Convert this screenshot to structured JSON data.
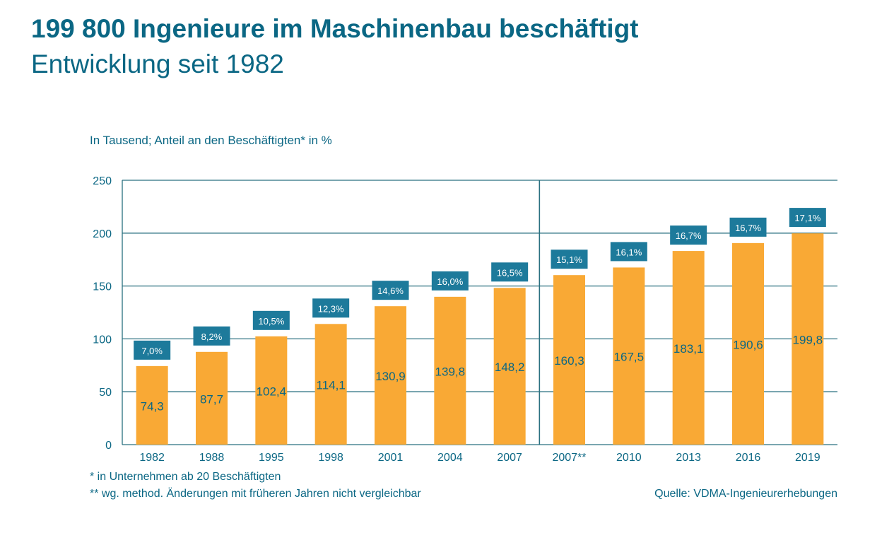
{
  "title": "199 800 Ingenieure im Maschinenbau beschäftigt",
  "subtitle": "Entwicklung seit 1982",
  "unit_label": "In Tausend; Anteil an den Beschäftigten* in %",
  "footnotes": [
    "*  in Unternehmen ab 20 Beschäftigten",
    "** wg. method. Änderungen mit früheren Jahren nicht vergleichbar"
  ],
  "source": "Quelle: VDMA-Ingenieurerhebungen",
  "colors": {
    "bar": "#f9a935",
    "label_box": "#1d7a9b",
    "text": "#0b6784",
    "grid": "#2a7080"
  },
  "chart_data": {
    "type": "bar",
    "categories": [
      "1982",
      "1988",
      "1995",
      "1998",
      "2001",
      "2004",
      "2007",
      "2007**",
      "2010",
      "2013",
      "2016",
      "2019"
    ],
    "values": [
      74.3,
      87.7,
      102.4,
      114.1,
      130.9,
      139.8,
      148.2,
      160.3,
      167.5,
      183.1,
      190.6,
      199.8
    ],
    "value_labels": [
      "74,3",
      "87,7",
      "102,4",
      "114,1",
      "130,9",
      "139,8",
      "148,2",
      "160,3",
      "167,5",
      "183,1",
      "190,6",
      "199,8"
    ],
    "share_labels": [
      "7,0%",
      "8,2%",
      "10,5%",
      "12,3%",
      "14,6%",
      "16,0%",
      "16,5%",
      "15,1%",
      "16,1%",
      "16,7%",
      "16,7%",
      "17,1%"
    ],
    "ylim": [
      0,
      250
    ],
    "yticks": [
      0,
      50,
      100,
      150,
      200,
      250
    ],
    "grid": true,
    "separator_after": "2007"
  }
}
